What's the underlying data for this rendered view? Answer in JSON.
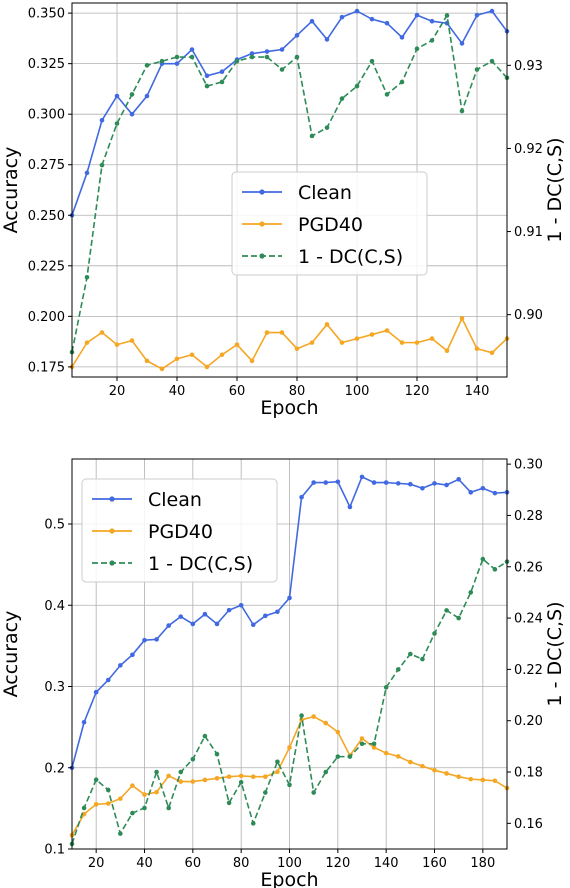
{
  "colors": {
    "clean": "#4169e1",
    "pgd": "#f5a623",
    "dc": "#2e8b57"
  },
  "chart_data": [
    {
      "type": "line",
      "xlabel": "Epoch",
      "ylabel": "Accuracy",
      "ylabel_right": "1 - DC(C,S)",
      "xlim": [
        5,
        150
      ],
      "ylim": [
        0.17,
        0.355
      ],
      "ylim_right": [
        0.8925,
        0.9375
      ],
      "xticks": [
        20,
        40,
        60,
        80,
        100,
        120,
        140
      ],
      "yticks": [
        0.175,
        0.2,
        0.225,
        0.25,
        0.275,
        0.3,
        0.325,
        0.35
      ],
      "ytick_labels": [
        "0.175",
        "0.200",
        "0.225",
        "0.250",
        "0.275",
        "0.300",
        "0.325",
        "0.350"
      ],
      "yticks_right": [
        0.9,
        0.91,
        0.92,
        0.93
      ],
      "ytick_labels_right": [
        "0.90",
        "0.91",
        "0.92",
        "0.93"
      ],
      "grid": true,
      "legend_position": "center-right",
      "x": [
        5,
        10,
        15,
        20,
        25,
        30,
        35,
        40,
        45,
        50,
        55,
        60,
        65,
        70,
        75,
        80,
        85,
        90,
        95,
        100,
        105,
        110,
        115,
        120,
        125,
        130,
        135,
        140,
        145,
        150
      ],
      "series": [
        {
          "name": "Clean",
          "axis": "left",
          "color_key": "clean",
          "dashed": false,
          "values": [
            0.25,
            0.271,
            0.297,
            0.309,
            0.3,
            0.309,
            0.325,
            0.325,
            0.332,
            0.319,
            0.321,
            0.327,
            0.33,
            0.331,
            0.332,
            0.339,
            0.346,
            0.337,
            0.348,
            0.351,
            0.347,
            0.345,
            0.338,
            0.349,
            0.346,
            0.345,
            0.335,
            0.349,
            0.351,
            0.341
          ]
        },
        {
          "name": "PGD40",
          "axis": "left",
          "color_key": "pgd",
          "dashed": false,
          "values": [
            0.175,
            0.187,
            0.192,
            0.186,
            0.188,
            0.178,
            0.174,
            0.179,
            0.181,
            0.175,
            0.181,
            0.186,
            0.178,
            0.192,
            0.192,
            0.184,
            0.187,
            0.196,
            0.187,
            0.189,
            0.191,
            0.193,
            0.187,
            0.187,
            0.189,
            0.183,
            0.199,
            0.184,
            0.182,
            0.189
          ]
        },
        {
          "name": "1 - DC(C,S)",
          "axis": "right",
          "color_key": "dc",
          "dashed": true,
          "values": [
            0.8955,
            0.9045,
            0.918,
            0.923,
            0.9265,
            0.93,
            0.9305,
            0.931,
            0.931,
            0.9275,
            0.928,
            0.9305,
            0.931,
            0.931,
            0.9295,
            0.931,
            0.9215,
            0.9225,
            0.926,
            0.9275,
            0.9305,
            0.9265,
            0.928,
            0.932,
            0.933,
            0.936,
            0.9245,
            0.9295,
            0.9305,
            0.9285
          ]
        }
      ]
    },
    {
      "type": "line",
      "xlabel": "Epoch",
      "ylabel": "Accuracy",
      "ylabel_right": "1 - DC(C,S)",
      "xlim": [
        10,
        190
      ],
      "ylim": [
        0.1,
        0.58
      ],
      "ylim_right": [
        0.15,
        0.302
      ],
      "xticks": [
        20,
        40,
        60,
        80,
        100,
        120,
        140,
        160,
        180
      ],
      "yticks": [
        0.1,
        0.2,
        0.3,
        0.4,
        0.5
      ],
      "ytick_labels": [
        "0.1",
        "0.2",
        "0.3",
        "0.4",
        "0.5"
      ],
      "yticks_right": [
        0.16,
        0.18,
        0.2,
        0.22,
        0.24,
        0.26,
        0.28,
        0.3
      ],
      "ytick_labels_right": [
        "0.16",
        "0.18",
        "0.20",
        "0.22",
        "0.24",
        "0.26",
        "0.28",
        "0.30"
      ],
      "grid": true,
      "legend_position": "upper-left",
      "x": [
        10,
        15,
        20,
        25,
        30,
        35,
        40,
        45,
        50,
        55,
        60,
        65,
        70,
        75,
        80,
        85,
        90,
        95,
        100,
        105,
        110,
        115,
        120,
        125,
        130,
        135,
        140,
        145,
        150,
        155,
        160,
        165,
        170,
        175,
        180,
        185,
        190
      ],
      "series": [
        {
          "name": "Clean",
          "axis": "left",
          "color_key": "clean",
          "dashed": false,
          "values": [
            0.2,
            0.256,
            0.293,
            0.308,
            0.326,
            0.339,
            0.357,
            0.358,
            0.375,
            0.386,
            0.377,
            0.389,
            0.377,
            0.394,
            0.4,
            0.376,
            0.387,
            0.392,
            0.409,
            0.533,
            0.551,
            0.551,
            0.552,
            0.521,
            0.558,
            0.551,
            0.551,
            0.55,
            0.549,
            0.544,
            0.55,
            0.548,
            0.555,
            0.539,
            0.544,
            0.538,
            0.539
          ]
        },
        {
          "name": "PGD40",
          "axis": "left",
          "color_key": "pgd",
          "dashed": false,
          "values": [
            0.117,
            0.143,
            0.155,
            0.156,
            0.162,
            0.178,
            0.167,
            0.17,
            0.19,
            0.183,
            0.183,
            0.185,
            0.187,
            0.189,
            0.19,
            0.189,
            0.189,
            0.195,
            0.225,
            0.259,
            0.263,
            0.255,
            0.244,
            0.215,
            0.236,
            0.225,
            0.218,
            0.214,
            0.207,
            0.202,
            0.197,
            0.193,
            0.189,
            0.186,
            0.185,
            0.184,
            0.175
          ]
        },
        {
          "name": "1 - DC(C,S)",
          "axis": "right",
          "color_key": "dc",
          "dashed": true,
          "values": [
            0.152,
            0.166,
            0.177,
            0.173,
            0.156,
            0.164,
            0.166,
            0.18,
            0.166,
            0.18,
            0.185,
            0.194,
            0.187,
            0.168,
            0.176,
            0.16,
            0.172,
            0.184,
            0.175,
            0.202,
            0.172,
            0.18,
            0.186,
            0.186,
            0.191,
            0.191,
            0.213,
            0.22,
            0.226,
            0.224,
            0.234,
            0.243,
            0.24,
            0.25,
            0.263,
            0.259,
            0.262
          ]
        }
      ]
    }
  ]
}
